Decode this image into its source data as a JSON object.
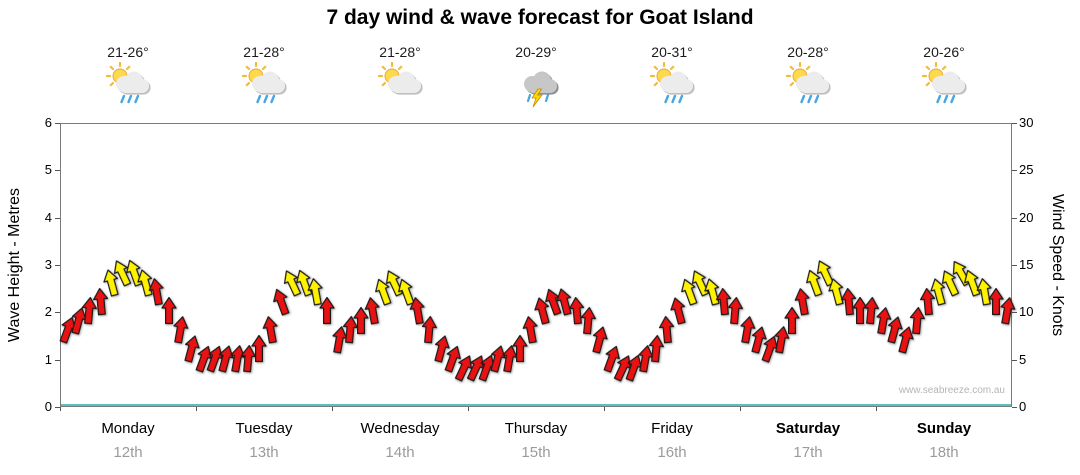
{
  "title": "7 day wind & wave forecast for Goat Island",
  "watermark": "www.seabreeze.com.au",
  "left_axis": {
    "label": "Wave Height - Metres",
    "ticks": [
      0,
      1,
      2,
      3,
      4,
      5,
      6
    ],
    "max": 6
  },
  "right_axis": {
    "label": "Wind Speed - Knots",
    "ticks": [
      0,
      5,
      10,
      15,
      20,
      25,
      30
    ],
    "max": 30
  },
  "days": [
    {
      "name": "Monday",
      "date": "12th",
      "temp": "21-26°",
      "icon": "sun-cloud-rain",
      "bold": false
    },
    {
      "name": "Tuesday",
      "date": "13th",
      "temp": "21-28°",
      "icon": "sun-cloud-rain",
      "bold": false
    },
    {
      "name": "Wednesday",
      "date": "14th",
      "temp": "21-28°",
      "icon": "sun-cloud",
      "bold": false
    },
    {
      "name": "Thursday",
      "date": "15th",
      "temp": "20-29°",
      "icon": "storm",
      "bold": false
    },
    {
      "name": "Friday",
      "date": "16th",
      "temp": "20-31°",
      "icon": "sun-cloud-rain",
      "bold": false
    },
    {
      "name": "Saturday",
      "date": "17th",
      "temp": "20-28°",
      "icon": "sun-cloud-rain",
      "bold": true
    },
    {
      "name": "Sunday",
      "date": "18th",
      "temp": "20-26°",
      "icon": "sun-cloud-rain",
      "bold": true
    }
  ],
  "colors": {
    "arrow_red": "#e81212",
    "arrow_yellow": "#fff200",
    "arrow_outline": "#1a1a1a",
    "baseline_teal": "#5ebfc0",
    "date_gray": "#9b9b9b"
  },
  "chart_data": {
    "type": "wind-arrow-series",
    "title": "7 day wind & wave forecast for Goat Island",
    "x_unit": "hours from Monday 00:00, step 2h, 7 days total (0-166)",
    "y_unit": "knots (right axis); left axis shows wave height metres 0-6 on same gridline scale",
    "wave_axis_range": [
      0,
      6
    ],
    "wind_axis_range": [
      0,
      30
    ],
    "legend": "each point drawn as wind barb arrow; color y=yellow (stronger ~12+ kn), r=red; dir = tilt degrees clockwise from vertical",
    "point_format": [
      "hour",
      "knots",
      "dir_deg",
      "color"
    ],
    "points": [
      [
        0,
        8,
        20,
        "r"
      ],
      [
        2,
        9,
        15,
        "r"
      ],
      [
        4,
        10,
        5,
        "r"
      ],
      [
        6,
        11,
        -5,
        "r"
      ],
      [
        8,
        13,
        -15,
        "y"
      ],
      [
        10,
        14,
        -25,
        "y"
      ],
      [
        12,
        14,
        -20,
        "y"
      ],
      [
        14,
        13,
        -15,
        "y"
      ],
      [
        16,
        12,
        -10,
        "r"
      ],
      [
        18,
        10,
        0,
        "r"
      ],
      [
        20,
        8,
        10,
        "r"
      ],
      [
        22,
        6,
        15,
        "r"
      ],
      [
        24,
        5,
        20,
        "r"
      ],
      [
        26,
        5,
        20,
        "r"
      ],
      [
        28,
        5,
        15,
        "r"
      ],
      [
        30,
        5,
        10,
        "r"
      ],
      [
        32,
        5,
        5,
        "r"
      ],
      [
        34,
        6,
        0,
        "r"
      ],
      [
        36,
        8,
        -10,
        "r"
      ],
      [
        38,
        11,
        -20,
        "r"
      ],
      [
        40,
        13,
        -25,
        "y"
      ],
      [
        42,
        13,
        -20,
        "y"
      ],
      [
        44,
        12,
        -10,
        "y"
      ],
      [
        46,
        10,
        0,
        "r"
      ],
      [
        48,
        7,
        10,
        "r"
      ],
      [
        50,
        8,
        5,
        "r"
      ],
      [
        52,
        9,
        0,
        "r"
      ],
      [
        54,
        10,
        -10,
        "r"
      ],
      [
        56,
        12,
        -20,
        "y"
      ],
      [
        58,
        13,
        -25,
        "y"
      ],
      [
        60,
        12,
        -20,
        "y"
      ],
      [
        62,
        10,
        -10,
        "r"
      ],
      [
        64,
        8,
        5,
        "r"
      ],
      [
        66,
        6,
        15,
        "r"
      ],
      [
        68,
        5,
        20,
        "r"
      ],
      [
        70,
        4,
        25,
        "r"
      ],
      [
        72,
        4,
        25,
        "r"
      ],
      [
        74,
        4,
        20,
        "r"
      ],
      [
        76,
        5,
        15,
        "r"
      ],
      [
        78,
        5,
        10,
        "r"
      ],
      [
        80,
        6,
        0,
        "r"
      ],
      [
        82,
        8,
        -10,
        "r"
      ],
      [
        84,
        10,
        -15,
        "r"
      ],
      [
        86,
        11,
        -20,
        "r"
      ],
      [
        88,
        11,
        -15,
        "r"
      ],
      [
        90,
        10,
        -5,
        "r"
      ],
      [
        92,
        9,
        5,
        "r"
      ],
      [
        94,
        7,
        15,
        "r"
      ],
      [
        96,
        5,
        20,
        "r"
      ],
      [
        98,
        4,
        25,
        "r"
      ],
      [
        100,
        4,
        20,
        "r"
      ],
      [
        102,
        5,
        10,
        "r"
      ],
      [
        104,
        6,
        5,
        "r"
      ],
      [
        106,
        8,
        -5,
        "r"
      ],
      [
        108,
        10,
        -15,
        "r"
      ],
      [
        110,
        12,
        -20,
        "y"
      ],
      [
        112,
        13,
        -25,
        "y"
      ],
      [
        114,
        12,
        -15,
        "y"
      ],
      [
        116,
        11,
        -5,
        "r"
      ],
      [
        118,
        10,
        5,
        "r"
      ],
      [
        120,
        8,
        10,
        "r"
      ],
      [
        122,
        7,
        15,
        "r"
      ],
      [
        124,
        6,
        20,
        "r"
      ],
      [
        126,
        7,
        10,
        "r"
      ],
      [
        128,
        9,
        0,
        "r"
      ],
      [
        130,
        11,
        -10,
        "r"
      ],
      [
        132,
        13,
        -20,
        "y"
      ],
      [
        134,
        14,
        -25,
        "y"
      ],
      [
        136,
        12,
        -15,
        "y"
      ],
      [
        138,
        11,
        -5,
        "r"
      ],
      [
        140,
        10,
        0,
        "r"
      ],
      [
        142,
        10,
        5,
        "r"
      ],
      [
        144,
        9,
        10,
        "r"
      ],
      [
        146,
        8,
        15,
        "r"
      ],
      [
        148,
        7,
        15,
        "r"
      ],
      [
        150,
        9,
        5,
        "r"
      ],
      [
        152,
        11,
        -5,
        "r"
      ],
      [
        154,
        12,
        -15,
        "y"
      ],
      [
        156,
        13,
        -25,
        "y"
      ],
      [
        158,
        14,
        -30,
        "y"
      ],
      [
        160,
        13,
        -20,
        "y"
      ],
      [
        162,
        12,
        -10,
        "y"
      ],
      [
        164,
        11,
        0,
        "r"
      ],
      [
        166,
        10,
        10,
        "r"
      ]
    ]
  }
}
